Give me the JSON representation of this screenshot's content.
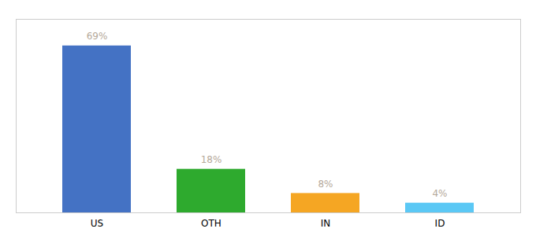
{
  "chart_data": {
    "type": "bar",
    "categories": [
      "US",
      "OTH",
      "IN",
      "ID"
    ],
    "values": [
      69,
      18,
      8,
      4
    ],
    "value_labels": [
      "69%",
      "18%",
      "8%",
      "4%"
    ],
    "colors": [
      "#4472c4",
      "#2eaa2e",
      "#f5a623",
      "#5bc8f5"
    ],
    "ylim": [
      0,
      80
    ],
    "data_labels": true,
    "tick_labels": "x"
  }
}
